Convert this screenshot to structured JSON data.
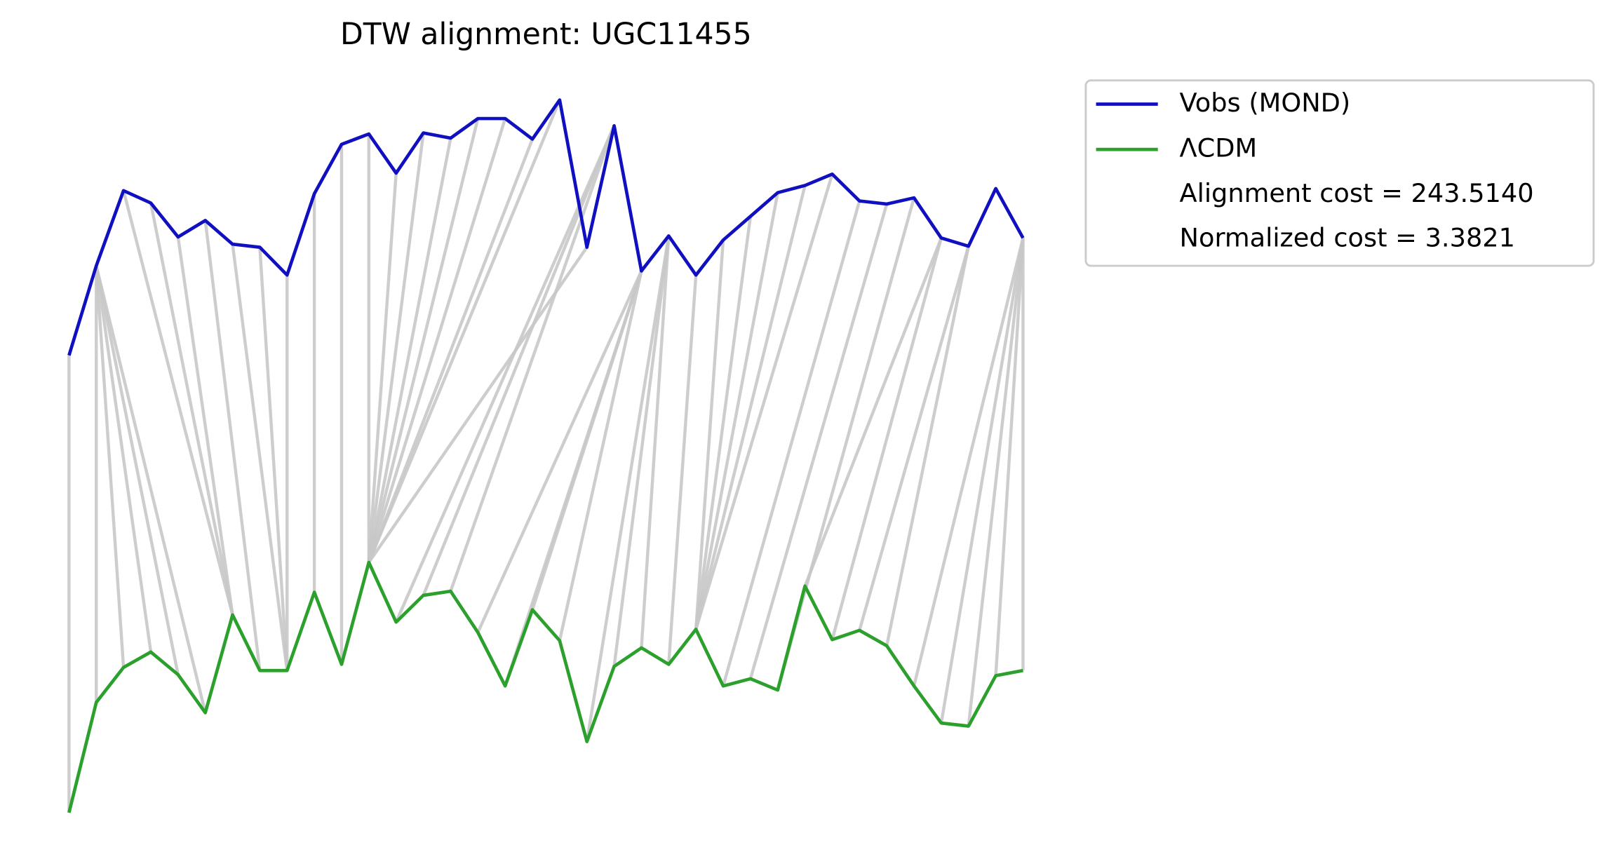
{
  "chart_data": {
    "type": "dtw",
    "title": "DTW alignment: UGC11455",
    "series": [
      {
        "name": "Vobs (MOND)",
        "color": "#1010c0",
        "values": [
          495,
          582,
          655,
          643,
          610,
          626,
          603,
          600,
          573,
          652,
          700,
          710,
          672,
          711,
          706,
          725,
          725,
          705,
          743,
          600,
          718,
          577,
          611,
          573,
          607,
          630,
          653,
          660,
          671,
          645,
          642,
          648,
          609,
          601,
          657,
          609
        ]
      },
      {
        "name": "ΛCDM",
        "color": "#2ca02c",
        "values": [
          51,
          158,
          192,
          207,
          185,
          148,
          243,
          189,
          189,
          265,
          195,
          294,
          236,
          262,
          266,
          226,
          174,
          248,
          218,
          120,
          193,
          211,
          195,
          229,
          174,
          181,
          170,
          271,
          219,
          228,
          213,
          174,
          138,
          135,
          184,
          189
        ]
      }
    ],
    "alignment": [
      [
        0,
        0
      ],
      [
        1,
        1
      ],
      [
        1,
        2
      ],
      [
        1,
        3
      ],
      [
        1,
        4
      ],
      [
        1,
        5
      ],
      [
        2,
        6
      ],
      [
        3,
        6
      ],
      [
        4,
        6
      ],
      [
        5,
        7
      ],
      [
        6,
        8
      ],
      [
        7,
        8
      ],
      [
        8,
        8
      ],
      [
        9,
        9
      ],
      [
        10,
        10
      ],
      [
        11,
        11
      ],
      [
        12,
        11
      ],
      [
        13,
        11
      ],
      [
        14,
        11
      ],
      [
        15,
        11
      ],
      [
        16,
        11
      ],
      [
        17,
        11
      ],
      [
        18,
        11
      ],
      [
        19,
        11
      ],
      [
        20,
        12
      ],
      [
        20,
        13
      ],
      [
        20,
        14
      ],
      [
        21,
        15
      ],
      [
        21,
        16
      ],
      [
        21,
        17
      ],
      [
        21,
        18
      ],
      [
        22,
        19
      ],
      [
        22,
        20
      ],
      [
        22,
        21
      ],
      [
        23,
        22
      ],
      [
        24,
        23
      ],
      [
        25,
        23
      ],
      [
        26,
        23
      ],
      [
        27,
        23
      ],
      [
        28,
        23
      ],
      [
        29,
        24
      ],
      [
        30,
        25
      ],
      [
        31,
        26
      ],
      [
        32,
        27
      ],
      [
        32,
        28
      ],
      [
        33,
        29
      ],
      [
        33,
        30
      ],
      [
        35,
        31
      ],
      [
        35,
        32
      ],
      [
        35,
        33
      ],
      [
        35,
        34
      ],
      [
        35,
        35
      ]
    ],
    "annotations": [
      "Alignment cost = 243.5140",
      "Normalized cost = 3.3821"
    ],
    "alignment_color": "#c8c8c8",
    "legend": "outside upper right"
  }
}
